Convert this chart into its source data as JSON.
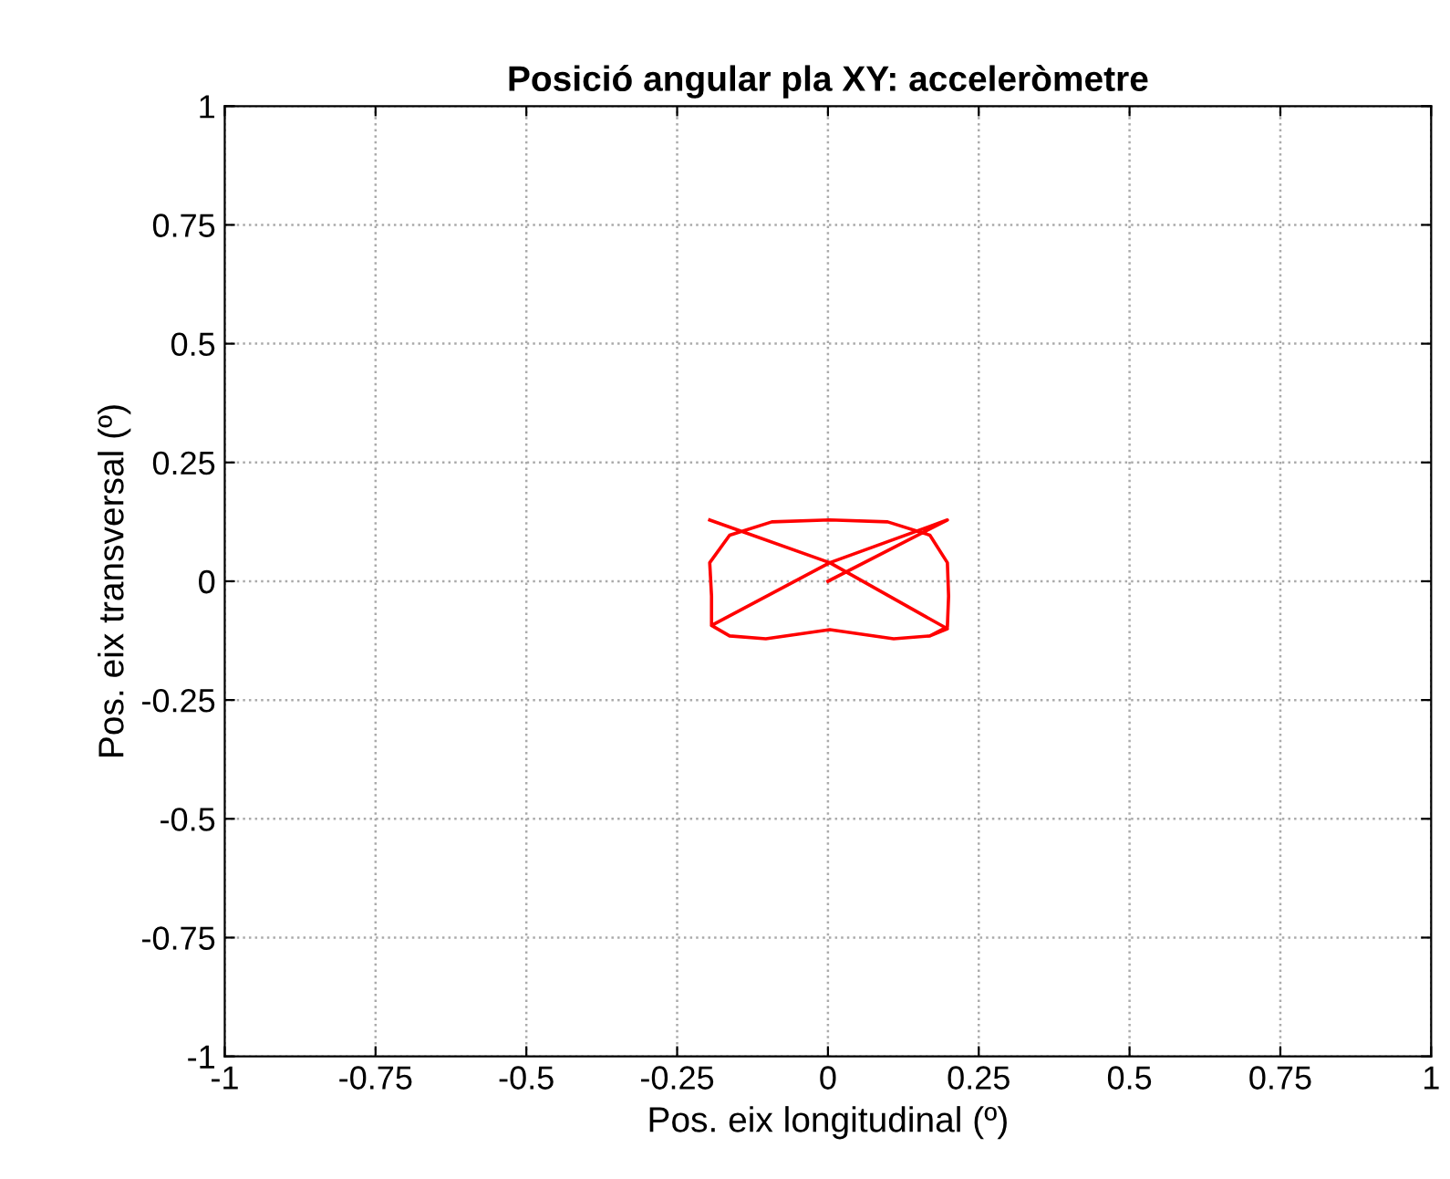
{
  "chart_data": {
    "type": "line",
    "title": "Posició angular pla XY: acceleròmetre",
    "xlabel": "Pos. eix longitudinal (º)",
    "ylabel": "Pos. eix transversal (º)",
    "series": [
      {
        "color": "#ff0000",
        "x": [
          0,
          0.198,
          0.003,
          -0.193,
          -0.163,
          -0.103,
          0.003,
          0.109,
          0.169,
          0.198,
          0.2,
          0.198,
          0.169,
          0.099,
          0.003,
          -0.093,
          -0.163,
          -0.196,
          -0.193,
          -0.193,
          -0.163,
          -0.103,
          0.003,
          0.109,
          0.169,
          0.198,
          0.003,
          -0.196
        ],
        "values": [
          0,
          0.129,
          0.039,
          -0.093,
          -0.115,
          -0.121,
          -0.102,
          -0.121,
          -0.115,
          -0.096,
          -0.031,
          0.039,
          0.097,
          0.125,
          0.129,
          0.125,
          0.097,
          0.039,
          -0.031,
          -0.093,
          -0.115,
          -0.121,
          -0.102,
          -0.121,
          -0.115,
          -0.1,
          0.039,
          0.129
        ]
      }
    ],
    "xlim": [
      -1,
      1
    ],
    "ylim": [
      -1,
      1
    ],
    "xticks": [
      -1,
      -0.75,
      -0.5,
      -0.25,
      0,
      0.25,
      0.5,
      0.75,
      1
    ],
    "yticks": [
      -1,
      -0.75,
      -0.5,
      -0.25,
      0,
      0.25,
      0.5,
      0.75,
      1
    ],
    "grid": true,
    "legend": false,
    "marker": "none",
    "line_style": "solid"
  }
}
